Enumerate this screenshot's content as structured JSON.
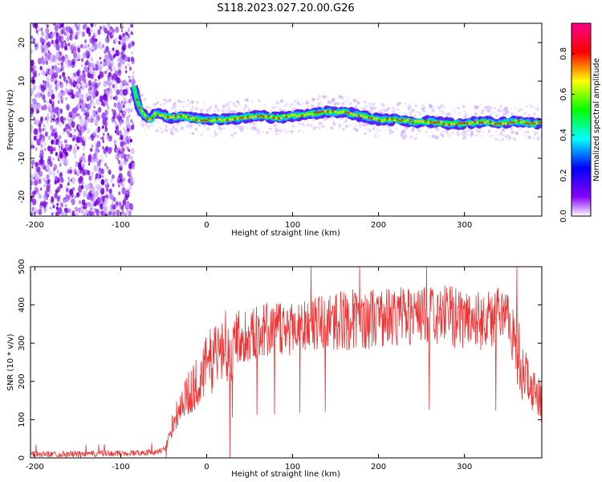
{
  "title": "S118.2023.027.20.00.G26",
  "chart_data": [
    {
      "type": "heatmap",
      "title": "",
      "xlabel": "Height of straight line (km)",
      "ylabel": "Frequency (Hz)",
      "xlim": [
        -205,
        390
      ],
      "ylim": [
        -25,
        25
      ],
      "xticks": [
        -200,
        -100,
        0,
        100,
        200,
        300
      ],
      "yticks": [
        -20,
        -10,
        0,
        10,
        20
      ],
      "colorbar": {
        "label": "Normalized spectral amplitude",
        "range": [
          0,
          0.95
        ],
        "ticks": [
          0.0,
          0.2,
          0.4,
          0.6,
          0.8
        ],
        "tick_labels": [
          "0.0",
          "0.2",
          "0.4",
          "0.6",
          "0.8"
        ],
        "colors": [
          "#ffffff",
          "#8800ff",
          "#0000ff",
          "#00ffff",
          "#00ff00",
          "#ffff00",
          "#ff0000",
          "#ff0088"
        ]
      },
      "noise_region_x": [
        -205,
        -85
      ],
      "signal_track": {
        "x": [
          -85,
          -80,
          -75,
          -70,
          -65,
          -60,
          -50,
          -40,
          -30,
          -20,
          -10,
          0,
          20,
          40,
          60,
          80,
          100,
          120,
          140,
          160,
          180,
          200,
          220,
          240,
          260,
          280,
          300,
          320,
          340,
          360,
          380,
          390
        ],
        "y": [
          9,
          4,
          2,
          0.5,
          0,
          1.5,
          1,
          0.5,
          1,
          0.5,
          0,
          0,
          0,
          0.5,
          1,
          0.5,
          1,
          1.5,
          2,
          2,
          1,
          0,
          0,
          -0.5,
          -0.5,
          -1,
          -1,
          -0.5,
          -1,
          -0.5,
          -1,
          -1
        ]
      }
    },
    {
      "type": "line",
      "title": "",
      "xlabel": "Height of straight line (km)",
      "ylabel": "SNR (10 * v/v)",
      "xlim": [
        -205,
        390
      ],
      "ylim": [
        0,
        500
      ],
      "xticks": [
        -200,
        -100,
        0,
        100,
        200,
        300
      ],
      "yticks": [
        0,
        100,
        200,
        300,
        400,
        500
      ],
      "color": "#f03232",
      "x": [
        -205,
        -150,
        -100,
        -60,
        -50,
        -45,
        -40,
        -30,
        -20,
        -10,
        0,
        10,
        20,
        30,
        40,
        50,
        60,
        80,
        100,
        120,
        140,
        160,
        180,
        200,
        220,
        240,
        260,
        280,
        300,
        320,
        340,
        350,
        360,
        365,
        370,
        380,
        390
      ],
      "y": [
        10,
        10,
        12,
        15,
        20,
        40,
        90,
        140,
        170,
        200,
        240,
        270,
        295,
        310,
        320,
        325,
        330,
        335,
        345,
        350,
        355,
        360,
        365,
        365,
        370,
        375,
        370,
        370,
        365,
        360,
        365,
        360,
        300,
        250,
        210,
        180,
        140
      ]
    }
  ]
}
